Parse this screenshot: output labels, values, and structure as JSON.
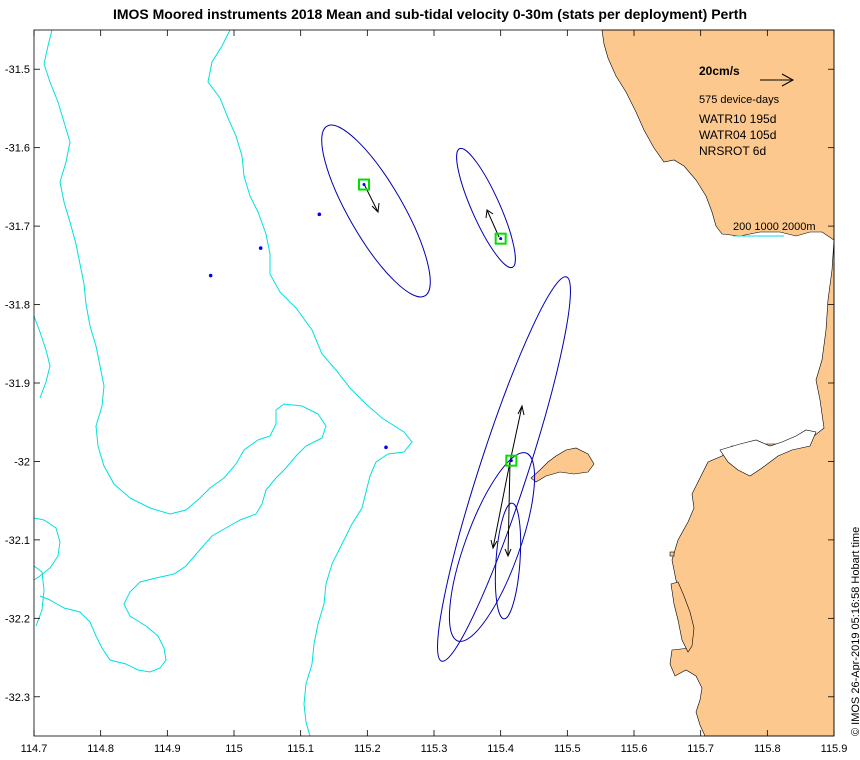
{
  "title": "IMOS Moored instruments 2018 Mean and sub-tidal velocity 0-30m (stats per deployment) Perth",
  "credit": "© IMOS 26-Apr-2019 05:16:58 Hobart time",
  "colors": {
    "land": "#fcc88e",
    "isobath": "#00e0e0",
    "ellipse": "#0000b4",
    "mooring_box": "#00e000",
    "site_dot": "#0000ff",
    "arrow": "#000000"
  },
  "axes": {
    "x_ticks": [
      "114.7",
      "114.8",
      "114.9",
      "115",
      "115.1",
      "115.2",
      "115.3",
      "115.4",
      "115.5",
      "115.6",
      "115.7",
      "115.8",
      "115.9"
    ],
    "y_ticks": [
      "-31.5",
      "-31.6",
      "-31.7",
      "-31.8",
      "-31.9",
      "-32",
      "-32.1",
      "-32.2",
      "-32.3"
    ],
    "lon_range": [
      114.7,
      115.9
    ],
    "lat_range": [
      -32.35,
      -31.45
    ]
  },
  "legend": {
    "scale_label": "20cm/s",
    "device_days": "575 device-days",
    "deployments": [
      "WATR10 195d",
      "WATR04 105d",
      "NRSROT 6d"
    ],
    "isobath_label": "200 1000 2000m"
  },
  "sites": [
    {
      "lon": 114.965,
      "lat": -31.763
    },
    {
      "lon": 115.04,
      "lat": -31.728
    },
    {
      "lon": 115.128,
      "lat": -31.685
    },
    {
      "lon": 115.228,
      "lat": -31.982
    }
  ],
  "moorings": [
    {
      "name": "WATR10",
      "lon": 115.195,
      "lat": -31.647
    },
    {
      "name": "WATR04",
      "lon": 115.4,
      "lat": -31.716
    },
    {
      "name": "NRSROT",
      "lon": 115.416,
      "lat": -31.999
    }
  ]
}
